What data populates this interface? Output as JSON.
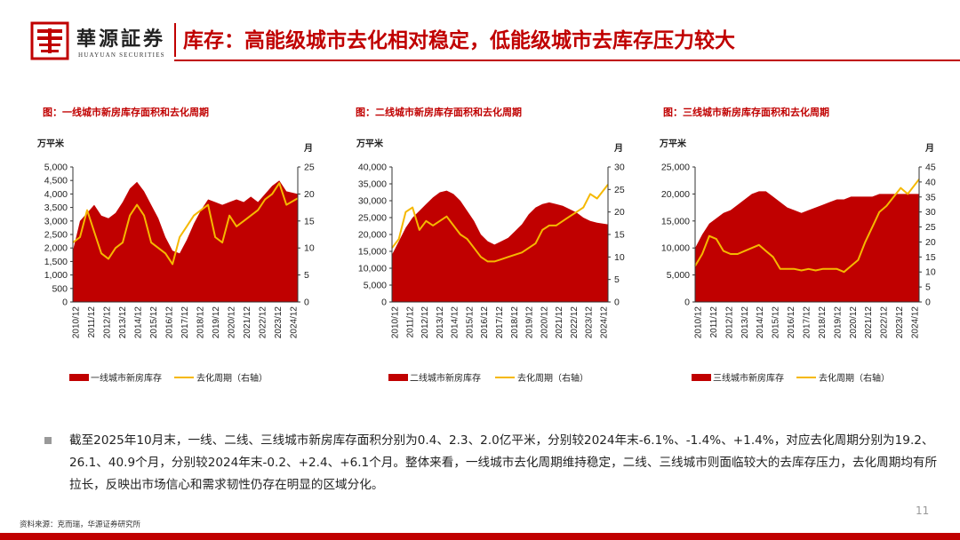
{
  "header": {
    "brand_cn": "華源証券",
    "brand_en": "HUAYUAN SECURITIES",
    "title": "库存：高能级城市去化相对稳定，低能级城市去库存压力较大"
  },
  "body_text": "截至2025年10月末，一线、二线、三线城市新房库存面积分别为0.4、2.3、2.0亿平米，分别较2024年末-6.1%、-1.4%、+1.4%，对应去化周期分别为19.2、26.1、40.9个月，分别较2024年末-0.2、+2.4、+6.1个月。整体来看，一线城市去化周期维持稳定，二线、三线城市则面临较大的去库存压力，去化周期均有所拉长，反映出市场信心和需求韧性仍存在明显的区域分化。",
  "footer": {
    "source": "资料来源：克而瑞，华源证券研究所",
    "page_number": "11"
  },
  "colors": {
    "brand_red": "#c00000",
    "line_gold": "#f5b800",
    "bar_red": "#c00000"
  },
  "chart_data": [
    {
      "type": "area",
      "title": "图：一线城市新房库存面积和去化周期",
      "ylabel_left": "万平米",
      "ylabel_right": "月",
      "ylim_left": [
        0,
        5000
      ],
      "ylim_right": [
        0,
        25
      ],
      "yticks_left": [
        "0",
        "500",
        "1,000",
        "1,500",
        "2,000",
        "2,500",
        "3,000",
        "3,500",
        "4,000",
        "4,500",
        "5,000"
      ],
      "yticks_right": [
        "0",
        "5",
        "10",
        "15",
        "20",
        "25"
      ],
      "x_ticks": [
        "2010/12",
        "2011/12",
        "2012/12",
        "2013/12",
        "2014/12",
        "2015/12",
        "2016/12",
        "2017/12",
        "2018/12",
        "2019/12",
        "2020/12",
        "2021/12",
        "2022/12",
        "2023/12",
        "2024/12"
      ],
      "x": [
        2010.0,
        2010.5,
        2011.0,
        2011.5,
        2012.0,
        2012.5,
        2013.0,
        2013.5,
        2014.0,
        2014.5,
        2015.0,
        2015.5,
        2016.0,
        2016.5,
        2017.0,
        2017.5,
        2018.0,
        2018.5,
        2019.0,
        2019.5,
        2020.0,
        2020.5,
        2021.0,
        2021.5,
        2022.0,
        2022.5,
        2023.0,
        2023.5,
        2024.0,
        2024.5,
        2025.0,
        2025.8
      ],
      "series": [
        {
          "name": "一线城市新房库存",
          "axis": "left",
          "values": [
            1900,
            3000,
            3300,
            3600,
            3200,
            3100,
            3300,
            3700,
            4200,
            4450,
            4100,
            3600,
            3100,
            2400,
            1900,
            1800,
            2300,
            2900,
            3400,
            3800,
            3700,
            3600,
            3700,
            3800,
            3700,
            3900,
            3700,
            4000,
            4300,
            4500,
            4100,
            4000
          ]
        },
        {
          "name": "去化周期（右轴）",
          "axis": "right",
          "values": [
            11,
            12,
            17,
            13,
            9,
            8,
            10,
            11,
            16,
            18,
            16,
            11,
            10,
            9,
            7,
            12,
            14,
            16,
            17,
            18,
            12,
            11,
            16,
            14,
            15,
            16,
            17,
            19,
            20,
            22,
            18,
            19.2
          ]
        }
      ],
      "legend_position": "bottom"
    },
    {
      "type": "area",
      "title": "图：二线城市新房库存面积和去化周期",
      "ylabel_left": "万平米",
      "ylabel_right": "月",
      "ylim_left": [
        0,
        40000
      ],
      "ylim_right": [
        0,
        30
      ],
      "yticks_left": [
        "0",
        "5,000",
        "10,000",
        "15,000",
        "20,000",
        "25,000",
        "30,000",
        "35,000",
        "40,000"
      ],
      "yticks_right": [
        "0",
        "5",
        "10",
        "15",
        "20",
        "25",
        "30"
      ],
      "x_ticks": [
        "2010/12",
        "2011/12",
        "2012/12",
        "2013/12",
        "2014/12",
        "2015/12",
        "2016/12",
        "2017/12",
        "2018/12",
        "2019/12",
        "2020/12",
        "2021/12",
        "2022/12",
        "2023/12",
        "2024/12"
      ],
      "x": [
        2010.0,
        2010.5,
        2011.0,
        2011.5,
        2012.0,
        2012.5,
        2013.0,
        2013.5,
        2014.0,
        2014.5,
        2015.0,
        2015.5,
        2016.0,
        2016.5,
        2017.0,
        2017.5,
        2018.0,
        2018.5,
        2019.0,
        2019.5,
        2020.0,
        2020.5,
        2021.0,
        2021.5,
        2022.0,
        2022.5,
        2023.0,
        2023.5,
        2024.0,
        2024.5,
        2025.0,
        2025.8
      ],
      "series": [
        {
          "name": "二线城市新房库存",
          "axis": "left",
          "values": [
            14000,
            18000,
            22000,
            25000,
            27000,
            29000,
            31000,
            32500,
            33000,
            32000,
            30000,
            27000,
            24000,
            20000,
            18000,
            17000,
            18000,
            19000,
            21000,
            23000,
            26000,
            28000,
            29000,
            29500,
            29000,
            28500,
            27500,
            26500,
            25000,
            24000,
            23500,
            23000
          ]
        },
        {
          "name": "去化周期（右轴）",
          "axis": "right",
          "values": [
            12,
            14,
            20,
            21,
            16,
            18,
            17,
            18,
            19,
            17,
            15,
            14,
            12,
            10,
            9,
            9,
            9.5,
            10,
            10.5,
            11,
            12,
            13,
            16,
            17,
            17,
            18,
            19,
            20,
            21,
            24,
            23,
            26.1
          ]
        }
      ],
      "legend_position": "bottom"
    },
    {
      "type": "area",
      "title": "图：三线城市新房库存面积和去化周期",
      "ylabel_left": "万平米",
      "ylabel_right": "月",
      "ylim_left": [
        0,
        25000
      ],
      "ylim_right": [
        0,
        45
      ],
      "yticks_left": [
        "0",
        "5,000",
        "10,000",
        "15,000",
        "20,000",
        "25,000"
      ],
      "yticks_right": [
        "0",
        "5",
        "10",
        "15",
        "20",
        "25",
        "30",
        "35",
        "40",
        "45"
      ],
      "x_ticks": [
        "2010/12",
        "2011/12",
        "2012/12",
        "2013/12",
        "2014/12",
        "2015/12",
        "2016/12",
        "2017/12",
        "2018/12",
        "2019/12",
        "2020/12",
        "2021/12",
        "2022/12",
        "2023/12",
        "2024/12"
      ],
      "x": [
        2010.0,
        2010.5,
        2011.0,
        2011.5,
        2012.0,
        2012.5,
        2013.0,
        2013.5,
        2014.0,
        2014.5,
        2015.0,
        2015.5,
        2016.0,
        2016.5,
        2017.0,
        2017.5,
        2018.0,
        2018.5,
        2019.0,
        2019.5,
        2020.0,
        2020.5,
        2021.0,
        2021.5,
        2022.0,
        2022.5,
        2023.0,
        2023.5,
        2024.0,
        2024.5,
        2025.0,
        2025.8
      ],
      "series": [
        {
          "name": "三线城市新房库存",
          "axis": "left",
          "values": [
            10000,
            12500,
            14500,
            15500,
            16500,
            17000,
            18000,
            19000,
            20000,
            20500,
            20500,
            19500,
            18500,
            17500,
            17000,
            16500,
            17000,
            17500,
            18000,
            18500,
            19000,
            19000,
            19500,
            19500,
            19500,
            19500,
            20000,
            20000,
            20000,
            20000,
            20000,
            20000
          ]
        },
        {
          "name": "去化周期（右轴）",
          "axis": "right",
          "values": [
            12,
            16,
            22,
            21,
            17,
            16,
            16,
            17,
            18,
            19,
            17,
            15,
            11,
            11,
            11,
            10.5,
            11,
            10.5,
            11,
            11,
            11,
            10,
            12,
            14,
            20,
            25,
            30,
            32,
            35,
            38,
            36,
            40.9
          ]
        }
      ],
      "legend_position": "bottom"
    }
  ]
}
